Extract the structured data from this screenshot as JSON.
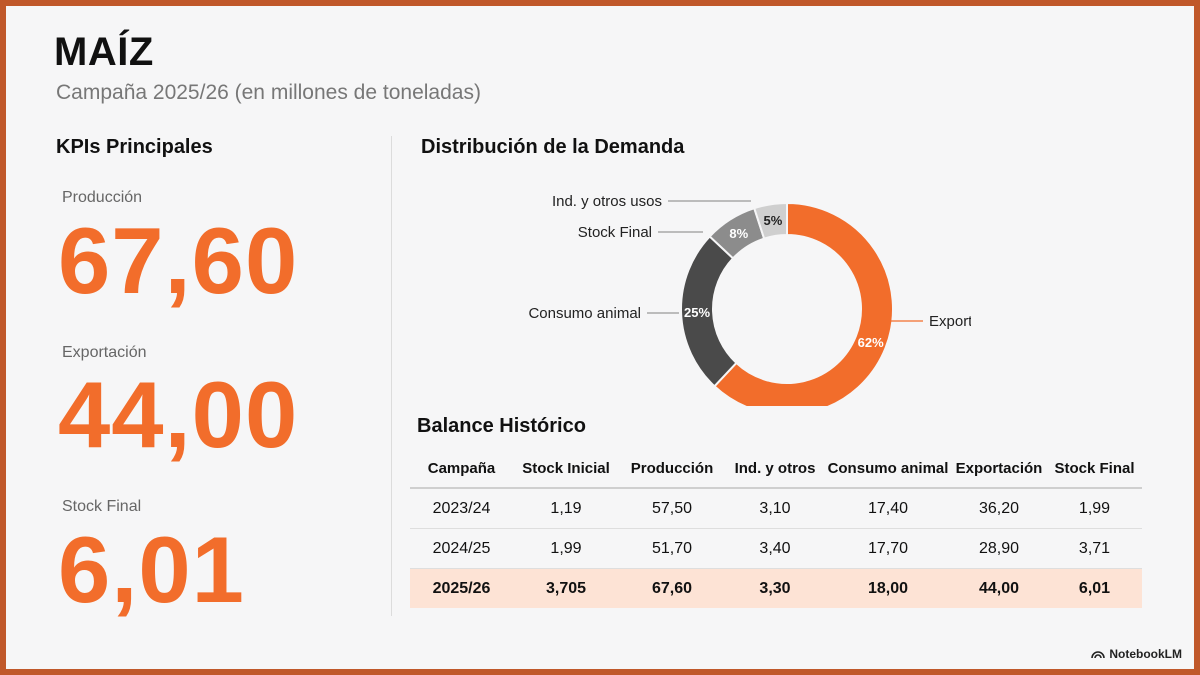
{
  "header": {
    "title": "MAÍZ",
    "subtitle": "Campaña 2025/26 (en millones de toneladas)"
  },
  "kpis": {
    "heading": "KPIs Principales",
    "items": [
      {
        "label": "Producción",
        "value": "67,60"
      },
      {
        "label": "Exportación",
        "value": "44,00"
      },
      {
        "label": "Stock Final",
        "value": "6,01"
      }
    ]
  },
  "chart_data": [
    {
      "type": "pie",
      "title": "Distribución de la Demanda",
      "donut": true,
      "slices": [
        {
          "label": "Exportación",
          "value": 62,
          "text": "62%",
          "color": "#f26d2b"
        },
        {
          "label": "Consumo animal",
          "value": 25,
          "text": "25%",
          "color": "#4a4a4a"
        },
        {
          "label": "Stock Final",
          "value": 8,
          "text": "8%",
          "color": "#8c8c8c"
        },
        {
          "label": "Ind. y otros usos",
          "value": 5,
          "text": "5%",
          "color": "#cfcfcf"
        }
      ]
    },
    {
      "type": "table",
      "title": "Balance Histórico",
      "columns": [
        "Campaña",
        "Stock Inicial",
        "Producción",
        "Ind. y otros",
        "Consumo animal",
        "Exportación",
        "Stock Final"
      ],
      "rows": [
        [
          "2023/24",
          "1,19",
          "57,50",
          "3,10",
          "17,40",
          "36,20",
          "1,99"
        ],
        [
          "2024/25",
          "1,99",
          "51,70",
          "3,40",
          "17,70",
          "28,90",
          "3,71"
        ],
        [
          "2025/26",
          "3,705",
          "67,60",
          "3,30",
          "18,00",
          "44,00",
          "6,01"
        ]
      ],
      "highlight_row": 2
    }
  ],
  "footer": {
    "brand": "NotebookLM"
  }
}
